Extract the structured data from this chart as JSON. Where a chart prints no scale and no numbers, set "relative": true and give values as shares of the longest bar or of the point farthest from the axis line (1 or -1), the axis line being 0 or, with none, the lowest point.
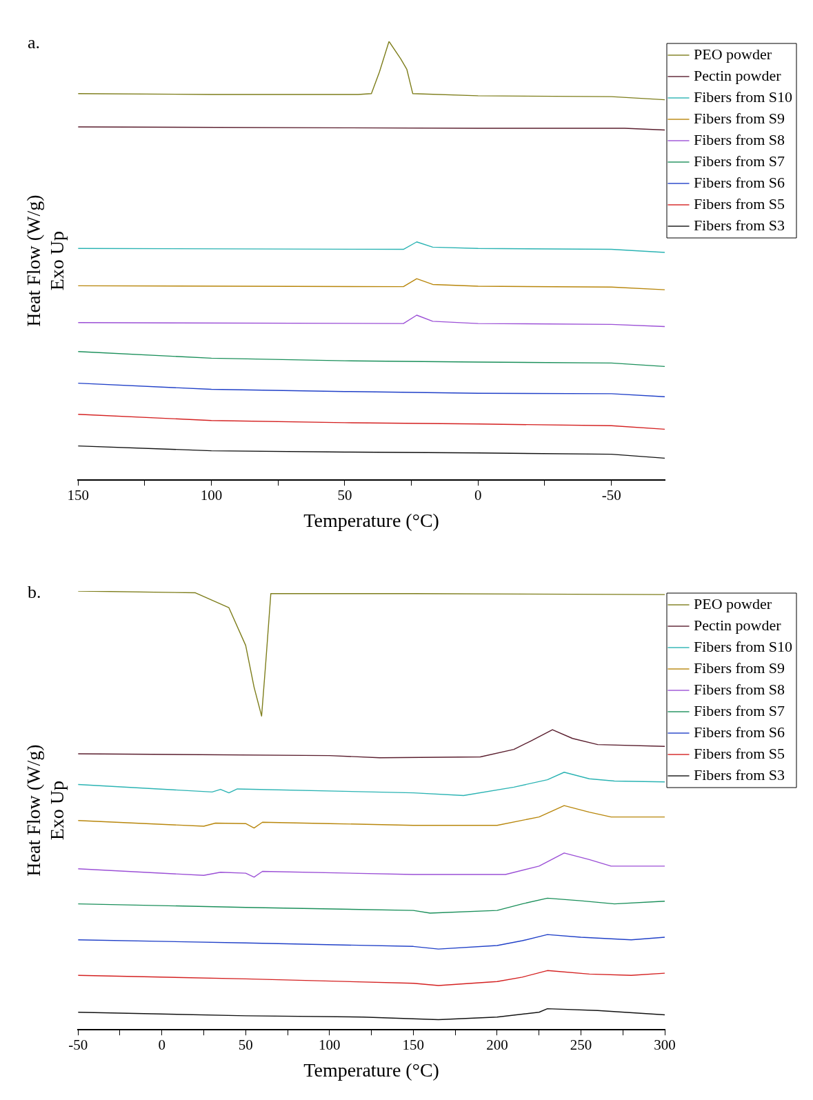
{
  "chart_data": [
    {
      "type": "line",
      "relative": true,
      "xlabel": "Temperature (°C)",
      "ylabel": "Heat Flow (W/g)\nExo Up",
      "annotations": [
        "a."
      ],
      "xlim": [
        150,
        -70
      ],
      "xticks": [
        150,
        {
          "value": 125,
          "label": null
        },
        100,
        {
          "value": 75,
          "label": null
        },
        50,
        {
          "value": 25,
          "label": null
        },
        0,
        {
          "value": -25,
          "label": null
        },
        -50
      ],
      "grid": false,
      "legend": "top right",
      "marker": "none",
      "line_style": "solid",
      "series": [
        {
          "name": "PEO powder",
          "color": "#7d7d1a",
          "x": [
            150,
            100,
            45,
            40,
            37,
            33.4,
            29,
            26.7,
            24.5,
            0,
            -50,
            -70
          ],
          "values": [
            0.881,
            0.879,
            0.879,
            0.881,
            0.93,
            1,
            0.96,
            0.936,
            0.881,
            0.876,
            0.874,
            0.867
          ]
        },
        {
          "name": "Pectin powder",
          "color": "#5a1e2e",
          "x": [
            150,
            50,
            0,
            -55,
            -70
          ],
          "values": [
            0.805,
            0.803,
            0.802,
            0.802,
            0.798
          ]
        },
        {
          "name": "Fibers from S10",
          "color": "#2ab3b3",
          "x": [
            150,
            28,
            23,
            17,
            0,
            -50,
            -70
          ],
          "values": [
            0.528,
            0.526,
            0.543,
            0.531,
            0.528,
            0.526,
            0.519
          ]
        },
        {
          "name": "Fibers from S9",
          "color": "#b8860b",
          "x": [
            150,
            28,
            23,
            17,
            0,
            -50,
            -70
          ],
          "values": [
            0.443,
            0.441,
            0.459,
            0.446,
            0.442,
            0.44,
            0.434
          ]
        },
        {
          "name": "Fibers from S8",
          "color": "#9b4fd6",
          "x": [
            150,
            28,
            23,
            17,
            0,
            -50,
            -70
          ],
          "values": [
            0.359,
            0.357,
            0.376,
            0.362,
            0.357,
            0.355,
            0.35
          ]
        },
        {
          "name": "Fibers from S7",
          "color": "#1a8f5a",
          "x": [
            150,
            100,
            50,
            0,
            -50,
            -70
          ],
          "values": [
            0.293,
            0.278,
            0.272,
            0.269,
            0.267,
            0.259
          ]
        },
        {
          "name": "Fibers from S6",
          "color": "#2040c8",
          "x": [
            150,
            100,
            50,
            0,
            -50,
            -70
          ],
          "values": [
            0.221,
            0.207,
            0.202,
            0.198,
            0.197,
            0.19
          ]
        },
        {
          "name": "Fibers from S5",
          "color": "#d42020",
          "x": [
            150,
            100,
            50,
            0,
            -50,
            -70
          ],
          "values": [
            0.15,
            0.136,
            0.131,
            0.128,
            0.124,
            0.116
          ]
        },
        {
          "name": "Fibers from S3",
          "color": "#111111",
          "x": [
            150,
            100,
            50,
            0,
            -50,
            -70
          ],
          "values": [
            0.078,
            0.067,
            0.064,
            0.062,
            0.059,
            0.05
          ]
        }
      ]
    },
    {
      "type": "line",
      "relative": true,
      "xlabel": "Temperature (°C)",
      "ylabel": "Heat Flow (W/g)\nExo Up",
      "annotations": [
        "b."
      ],
      "xlim": [
        -50,
        300
      ],
      "xticks": [
        -50,
        {
          "value": -25,
          "label": null
        },
        0,
        {
          "value": 25,
          "label": null
        },
        50,
        {
          "value": 75,
          "label": null
        },
        100,
        {
          "value": 125,
          "label": null
        },
        150,
        {
          "value": 175,
          "label": null
        },
        200,
        {
          "value": 225,
          "label": null
        },
        250,
        {
          "value": 275,
          "label": null
        },
        300
      ],
      "grid": false,
      "legend": "top right",
      "marker": "none",
      "line_style": "solid",
      "series": [
        {
          "name": "PEO powder",
          "color": "#7d7d1a",
          "x": [
            -50,
            20,
            40,
            50,
            55,
            59.5,
            62,
            65,
            150,
            300
          ],
          "values": [
            1,
            0.996,
            0.962,
            0.876,
            0.781,
            0.715,
            0.838,
            0.994,
            0.994,
            0.992
          ]
        },
        {
          "name": "Pectin powder",
          "color": "#5a1e2e",
          "x": [
            -50,
            100,
            130,
            190,
            210,
            220,
            233,
            245,
            260,
            300
          ],
          "values": [
            0.629,
            0.625,
            0.62,
            0.622,
            0.639,
            0.658,
            0.684,
            0.664,
            0.65,
            0.646
          ]
        },
        {
          "name": "Fibers from S10",
          "color": "#2ab3b3",
          "x": [
            -50,
            30,
            35,
            40,
            45,
            150,
            180,
            210,
            230,
            240,
            255,
            270,
            300
          ],
          "values": [
            0.559,
            0.542,
            0.548,
            0.54,
            0.549,
            0.54,
            0.534,
            0.553,
            0.57,
            0.587,
            0.572,
            0.567,
            0.565
          ]
        },
        {
          "name": "Fibers from S9",
          "color": "#b8860b",
          "x": [
            -50,
            25,
            32,
            50,
            55,
            60,
            100,
            150,
            200,
            225,
            240,
            255,
            268,
            300
          ],
          "values": [
            0.477,
            0.464,
            0.471,
            0.47,
            0.46,
            0.473,
            0.47,
            0.466,
            0.466,
            0.485,
            0.511,
            0.496,
            0.485,
            0.485
          ]
        },
        {
          "name": "Fibers from S8",
          "color": "#9b4fd6",
          "x": [
            -50,
            25,
            35,
            50,
            55,
            60,
            150,
            205,
            225,
            240,
            255,
            268,
            300
          ],
          "values": [
            0.367,
            0.352,
            0.359,
            0.357,
            0.348,
            0.361,
            0.354,
            0.354,
            0.373,
            0.403,
            0.388,
            0.373,
            0.373
          ]
        },
        {
          "name": "Fibers from S7",
          "color": "#1a8f5a",
          "x": [
            -50,
            50,
            150,
            160,
            200,
            215,
            230,
            250,
            270,
            300
          ],
          "values": [
            0.287,
            0.279,
            0.272,
            0.266,
            0.272,
            0.287,
            0.3,
            0.294,
            0.287,
            0.293
          ]
        },
        {
          "name": "Fibers from S6",
          "color": "#2040c8",
          "x": [
            -50,
            50,
            150,
            165,
            200,
            215,
            230,
            250,
            280,
            300
          ],
          "values": [
            0.205,
            0.198,
            0.19,
            0.184,
            0.192,
            0.203,
            0.217,
            0.211,
            0.205,
            0.211
          ]
        },
        {
          "name": "Fibers from S5",
          "color": "#d42020",
          "x": [
            -50,
            50,
            150,
            165,
            200,
            215,
            230,
            255,
            280,
            300
          ],
          "values": [
            0.124,
            0.116,
            0.106,
            0.101,
            0.11,
            0.12,
            0.135,
            0.127,
            0.124,
            0.129
          ]
        },
        {
          "name": "Fibers from S3",
          "color": "#111111",
          "x": [
            -50,
            50,
            120,
            165,
            200,
            225,
            230,
            260,
            300
          ],
          "values": [
            0.04,
            0.032,
            0.029,
            0.023,
            0.029,
            0.04,
            0.048,
            0.044,
            0.034
          ]
        }
      ]
    }
  ]
}
